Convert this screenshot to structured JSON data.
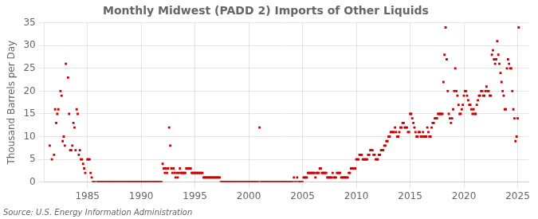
{
  "chart_data": {
    "type": "scatter",
    "title": "Monthly Midwest (PADD 2) Imports of Other Liquids",
    "ylabel": "Thousand Barrels per Day",
    "source": "Source: U.S. Energy Information Administration",
    "color": "#cc0000",
    "marker": "square",
    "grid": true,
    "xlim": [
      1981.0,
      2026.0
    ],
    "ylim": [
      0,
      35
    ],
    "xticks": [
      1985,
      1990,
      1995,
      2000,
      2005,
      2010,
      2015,
      2020,
      2025
    ],
    "yticks": [
      0,
      5,
      10,
      15,
      20,
      25,
      30,
      35
    ],
    "x": [
      1981.5,
      1981.7,
      1981.9,
      1982.0,
      1982.1,
      1982.2,
      1982.3,
      1982.5,
      1982.6,
      1982.7,
      1982.8,
      1982.9,
      1983.0,
      1983.2,
      1983.3,
      1983.4,
      1983.5,
      1983.6,
      1983.7,
      1983.8,
      1983.9,
      1984.0,
      1984.1,
      1984.2,
      1984.3,
      1984.4,
      1984.5,
      1984.6,
      1984.7,
      1984.8,
      1985.0,
      1985.1,
      1985.2,
      1985.3,
      1985.4,
      1985.5,
      1985.6,
      1985.7,
      1985.9,
      1986.0,
      1986.1,
      1986.2,
      1986.3,
      1986.4,
      1986.5,
      1986.6,
      1986.7,
      1986.8,
      1986.9,
      1987.0,
      1987.1,
      1987.2,
      1987.3,
      1987.4,
      1987.5,
      1987.6,
      1987.7,
      1987.8,
      1987.9,
      1988.0,
      1988.1,
      1988.2,
      1988.3,
      1988.4,
      1988.5,
      1988.6,
      1988.7,
      1988.8,
      1988.9,
      1989.0,
      1989.1,
      1989.2,
      1989.3,
      1989.4,
      1989.5,
      1989.6,
      1989.7,
      1989.8,
      1989.9,
      1990.0,
      1990.1,
      1990.2,
      1990.3,
      1990.4,
      1990.5,
      1990.6,
      1990.7,
      1990.8,
      1990.9,
      1991.0,
      1991.1,
      1991.2,
      1991.3,
      1991.4,
      1991.5,
      1991.6,
      1991.7,
      1991.8,
      1991.9,
      1992.0,
      1992.1,
      1992.2,
      1992.3,
      1992.4,
      1992.5,
      1992.6,
      1992.7,
      1992.8,
      1992.9,
      1993.0,
      1993.1,
      1993.2,
      1993.3,
      1993.4,
      1993.5,
      1993.6,
      1993.7,
      1993.8,
      1993.9,
      1994.0,
      1994.1,
      1994.2,
      1994.3,
      1994.4,
      1994.5,
      1994.6,
      1994.7,
      1994.8,
      1994.9,
      1995.0,
      1995.1,
      1995.2,
      1995.3,
      1995.4,
      1995.5,
      1995.6,
      1995.7,
      1995.8,
      1995.9,
      1996.0,
      1996.1,
      1996.2,
      1996.3,
      1996.4,
      1996.5,
      1996.6,
      1996.7,
      1996.8,
      1996.9,
      1997.0,
      1997.1,
      1997.2,
      1997.3,
      1997.4,
      1997.5,
      1997.6,
      1997.7,
      1997.8,
      1997.9,
      1998.0,
      1998.1,
      1998.2,
      1998.3,
      1998.4,
      1998.5,
      1998.6,
      1998.7,
      1998.8,
      1998.9,
      1999.0,
      1999.1,
      1999.2,
      1999.3,
      1999.4,
      1999.5,
      1999.6,
      1999.7,
      1999.8,
      1999.9,
      2000.0,
      2000.1,
      2000.2,
      2000.3,
      2000.4,
      2000.5,
      2000.6,
      2000.7,
      2000.8,
      2000.9,
      2001.0,
      2001.1,
      2001.2,
      2001.3,
      2001.4,
      2001.5,
      2001.6,
      2001.7,
      2001.8,
      2001.9,
      2002.0,
      2002.1,
      2002.2,
      2002.3,
      2002.4,
      2002.5,
      2002.6,
      2002.7,
      2002.8,
      2002.9,
      2003.0,
      2003.1,
      2003.2,
      2003.3,
      2003.4,
      2003.5,
      2003.6,
      2003.7,
      2003.8,
      2003.9,
      2004.0,
      2004.1,
      2004.2,
      2004.3,
      2004.4,
      2004.5,
      2004.6,
      2004.7,
      2004.8,
      2004.9,
      2005.0,
      2005.1,
      2005.2,
      2005.3,
      2005.4,
      2005.5,
      2005.6,
      2005.7,
      2005.8,
      2005.9,
      2006.0,
      2006.1,
      2006.2,
      2006.3,
      2006.4,
      2006.5,
      2006.6,
      2006.7,
      2006.8,
      2006.9,
      2007.0,
      2007.1,
      2007.2,
      2007.3,
      2007.4,
      2007.5,
      2007.6,
      2007.7,
      2007.8,
      2007.9,
      2008.0,
      2008.1,
      2008.2,
      2008.3,
      2008.4,
      2008.5,
      2008.6,
      2008.7,
      2008.8,
      2008.9,
      2009.0,
      2009.1,
      2009.2,
      2009.3,
      2009.4,
      2009.5,
      2009.6,
      2009.7,
      2009.8,
      2009.9,
      2010.0,
      2010.1,
      2010.2,
      2010.3,
      2010.4,
      2010.5,
      2010.6,
      2010.7,
      2010.8,
      2010.9,
      2011.0,
      2011.1,
      2011.2,
      2011.3,
      2011.4,
      2011.5,
      2011.6,
      2011.7,
      2011.8,
      2011.9,
      2012.0,
      2012.1,
      2012.2,
      2012.3,
      2012.4,
      2012.5,
      2012.6,
      2012.7,
      2012.8,
      2012.9,
      2013.0,
      2013.1,
      2013.2,
      2013.3,
      2013.4,
      2013.5,
      2013.6,
      2013.7,
      2013.8,
      2013.9,
      2014.0,
      2014.1,
      2014.2,
      2014.3,
      2014.4,
      2014.5,
      2014.6,
      2014.7,
      2014.8,
      2014.9,
      2015.0,
      2015.1,
      2015.2,
      2015.3,
      2015.4,
      2015.5,
      2015.6,
      2015.7,
      2015.8,
      2015.9,
      2016.0,
      2016.1,
      2016.2,
      2016.3,
      2016.4,
      2016.5,
      2016.6,
      2016.7,
      2016.8,
      2016.9,
      2017.0,
      2017.1,
      2017.2,
      2017.3,
      2017.4,
      2017.5,
      2017.6,
      2017.7,
      2017.8,
      2017.9,
      2018.0,
      2018.1,
      2018.2,
      2018.3,
      2018.4,
      2018.5,
      2018.6,
      2018.7,
      2018.8,
      2018.9,
      2019.0,
      2019.1,
      2019.2,
      2019.3,
      2019.4,
      2019.5,
      2019.6,
      2019.7,
      2019.8,
      2019.9,
      2020.0,
      2020.1,
      2020.2,
      2020.3,
      2020.4,
      2020.5,
      2020.6,
      2020.7,
      2020.8,
      2020.9,
      2021.0,
      2021.1,
      2021.2,
      2021.3,
      2021.4,
      2021.5,
      2021.6,
      2021.7,
      2021.8,
      2021.9,
      2022.0,
      2022.1,
      2022.2,
      2022.3,
      2022.4,
      2022.5,
      2022.6,
      2022.7,
      2022.8,
      2022.9,
      2023.0,
      2023.1,
      2023.2,
      2023.3,
      2023.4,
      2023.5,
      2023.6,
      2023.7,
      2023.8,
      2023.9,
      2024.0,
      2024.1,
      2024.2,
      2024.3,
      2024.4,
      2024.5,
      2024.6,
      2024.7,
      2024.8,
      2024.9,
      2025.0,
      2025.1
    ],
    "values": [
      8,
      5,
      6,
      16,
      13,
      15,
      16,
      20,
      19,
      9,
      10,
      8,
      26,
      23,
      15,
      7,
      7,
      8,
      13,
      12,
      7,
      16,
      15,
      6,
      7,
      5,
      5,
      4,
      3,
      2,
      5,
      5,
      5,
      2,
      1,
      0,
      0,
      0,
      0,
      0,
      0,
      0,
      0,
      0,
      0,
      0,
      0,
      0,
      0,
      0,
      0,
      0,
      0,
      0,
      0,
      0,
      0,
      0,
      0,
      0,
      0,
      0,
      0,
      0,
      0,
      0,
      0,
      0,
      0,
      0,
      0,
      0,
      0,
      0,
      0,
      0,
      0,
      0,
      0,
      0,
      0,
      0,
      0,
      0,
      0,
      0,
      0,
      0,
      0,
      0,
      0,
      0,
      0,
      0,
      0,
      0,
      0,
      0,
      0,
      4,
      3,
      2,
      3,
      2,
      3,
      12,
      8,
      3,
      2,
      3,
      2,
      1,
      2,
      1,
      2,
      3,
      2,
      2,
      2,
      2,
      2,
      3,
      3,
      3,
      3,
      3,
      2,
      2,
      2,
      2,
      2,
      2,
      2,
      2,
      2,
      2,
      2,
      1,
      1,
      1,
      1,
      1,
      1,
      1,
      1,
      1,
      1,
      1,
      1,
      1,
      1,
      1,
      1,
      0,
      0,
      0,
      0,
      0,
      0,
      0,
      0,
      0,
      0,
      0,
      0,
      0,
      0,
      0,
      0,
      0,
      0,
      0,
      0,
      0,
      0,
      0,
      0,
      0,
      0,
      0,
      0,
      0,
      0,
      0,
      0,
      0,
      0,
      0,
      0,
      12,
      0,
      0,
      0,
      0,
      0,
      0,
      0,
      0,
      0,
      0,
      0,
      0,
      0,
      0,
      0,
      0,
      0,
      0,
      0,
      0,
      0,
      0,
      0,
      0,
      0,
      0,
      0,
      0,
      0,
      0,
      0,
      1,
      0,
      0,
      1,
      0,
      0,
      0,
      0,
      0,
      1,
      1,
      1,
      1,
      2,
      2,
      2,
      2,
      2,
      2,
      2,
      1,
      2,
      2,
      2,
      3,
      3,
      2,
      2,
      2,
      2,
      2,
      1,
      1,
      1,
      1,
      1,
      2,
      1,
      1,
      1,
      2,
      2,
      2,
      2,
      1,
      1,
      1,
      1,
      1,
      1,
      1,
      2,
      2,
      3,
      3,
      3,
      3,
      3,
      5,
      5,
      5,
      6,
      6,
      6,
      5,
      5,
      5,
      5,
      5,
      6,
      6,
      7,
      7,
      7,
      6,
      6,
      5,
      5,
      5,
      6,
      6,
      7,
      7,
      7,
      8,
      8,
      9,
      9,
      10,
      10,
      11,
      11,
      11,
      11,
      12,
      11,
      10,
      10,
      11,
      12,
      12,
      13,
      13,
      12,
      12,
      12,
      11,
      11,
      15,
      15,
      14,
      13,
      12,
      11,
      10,
      10,
      11,
      11,
      10,
      10,
      11,
      10,
      10,
      10,
      12,
      11,
      10,
      10,
      12,
      13,
      13,
      14,
      14,
      14,
      15,
      15,
      15,
      15,
      15,
      22,
      28,
      34,
      27,
      20,
      15,
      14,
      13,
      14,
      16,
      20,
      25,
      20,
      19,
      17,
      15,
      15,
      16,
      17,
      19,
      20,
      20,
      19,
      18,
      17,
      17,
      16,
      15,
      16,
      15,
      15,
      17,
      18,
      19,
      19,
      20,
      20,
      19,
      19,
      20,
      21,
      20,
      20,
      19,
      19,
      28,
      29,
      27,
      26,
      27,
      31,
      28,
      26,
      24,
      22,
      20,
      19,
      16,
      16,
      25,
      27,
      26,
      25,
      25,
      20,
      16,
      14,
      9,
      10,
      14,
      34
    ]
  }
}
